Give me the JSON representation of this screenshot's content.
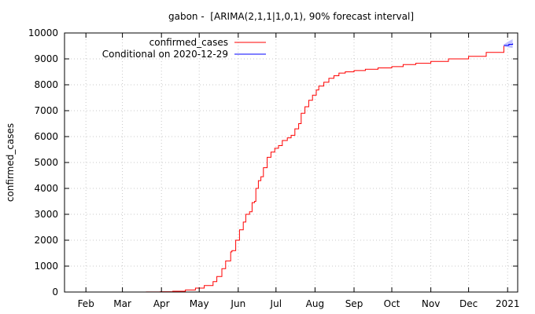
{
  "chart_data": {
    "type": "line",
    "title": "gabon -  [ARIMA(2,1,1|1,0,1), 90% forecast interval]",
    "xlabel": "",
    "ylabel": "confirmed_cases",
    "ylim": [
      0,
      10000
    ],
    "yticks": [
      0,
      1000,
      2000,
      3000,
      4000,
      5000,
      6000,
      7000,
      8000,
      9000,
      10000
    ],
    "x_range": [
      "2020-01-15",
      "2021-01-09"
    ],
    "xticks": [
      {
        "date": "2020-02-01",
        "label": "Feb"
      },
      {
        "date": "2020-03-01",
        "label": "Mar"
      },
      {
        "date": "2020-04-01",
        "label": "Apr"
      },
      {
        "date": "2020-05-01",
        "label": "May"
      },
      {
        "date": "2020-06-01",
        "label": "Jun"
      },
      {
        "date": "2020-07-01",
        "label": "Jul"
      },
      {
        "date": "2020-08-01",
        "label": "Aug"
      },
      {
        "date": "2020-09-01",
        "label": "Sep"
      },
      {
        "date": "2020-10-01",
        "label": "Oct"
      },
      {
        "date": "2020-11-01",
        "label": "Nov"
      },
      {
        "date": "2020-12-01",
        "label": "Dec"
      },
      {
        "date": "2021-01-01",
        "label": "2021"
      }
    ],
    "grid": true,
    "legend_position": "top-right",
    "series": [
      {
        "name": "confirmed_cases",
        "color": "#ff0000",
        "points": [
          [
            "2020-03-12",
            1
          ],
          [
            "2020-03-20",
            5
          ],
          [
            "2020-03-31",
            10
          ],
          [
            "2020-04-10",
            30
          ],
          [
            "2020-04-20",
            80
          ],
          [
            "2020-04-28",
            150
          ],
          [
            "2020-05-05",
            250
          ],
          [
            "2020-05-12",
            400
          ],
          [
            "2020-05-15",
            600
          ],
          [
            "2020-05-19",
            900
          ],
          [
            "2020-05-22",
            1200
          ],
          [
            "2020-05-26",
            1550
          ],
          [
            "2020-05-27",
            1600
          ],
          [
            "2020-05-30",
            2000
          ],
          [
            "2020-06-02",
            2400
          ],
          [
            "2020-06-05",
            2700
          ],
          [
            "2020-06-07",
            3000
          ],
          [
            "2020-06-10",
            3100
          ],
          [
            "2020-06-12",
            3450
          ],
          [
            "2020-06-14",
            3500
          ],
          [
            "2020-06-15",
            4000
          ],
          [
            "2020-06-17",
            4300
          ],
          [
            "2020-06-19",
            4450
          ],
          [
            "2020-06-21",
            4800
          ],
          [
            "2020-06-24",
            5200
          ],
          [
            "2020-06-27",
            5400
          ],
          [
            "2020-06-30",
            5550
          ],
          [
            "2020-07-03",
            5650
          ],
          [
            "2020-07-06",
            5850
          ],
          [
            "2020-07-10",
            5950
          ],
          [
            "2020-07-13",
            6050
          ],
          [
            "2020-07-16",
            6300
          ],
          [
            "2020-07-19",
            6500
          ],
          [
            "2020-07-21",
            6900
          ],
          [
            "2020-07-24",
            7150
          ],
          [
            "2020-07-27",
            7400
          ],
          [
            "2020-07-30",
            7600
          ],
          [
            "2020-08-02",
            7800
          ],
          [
            "2020-08-04",
            7950
          ],
          [
            "2020-08-08",
            8100
          ],
          [
            "2020-08-12",
            8250
          ],
          [
            "2020-08-16",
            8350
          ],
          [
            "2020-08-20",
            8450
          ],
          [
            "2020-08-25",
            8500
          ],
          [
            "2020-09-01",
            8550
          ],
          [
            "2020-09-10",
            8600
          ],
          [
            "2020-09-20",
            8650
          ],
          [
            "2020-10-01",
            8700
          ],
          [
            "2020-10-10",
            8780
          ],
          [
            "2020-10-20",
            8830
          ],
          [
            "2020-11-01",
            8900
          ],
          [
            "2020-11-15",
            9000
          ],
          [
            "2020-12-01",
            9100
          ],
          [
            "2020-12-15",
            9250
          ],
          [
            "2020-12-29",
            9500
          ]
        ]
      },
      {
        "name": "Conditional on 2020-12-29",
        "color": "#0000ff",
        "points": [
          [
            "2020-12-29",
            9520
          ],
          [
            "2021-01-02",
            9560
          ],
          [
            "2021-01-05",
            9590
          ]
        ],
        "interval": {
          "label": "90% forecast interval",
          "color": "#b4b4ff",
          "lower": [
            [
              "2020-12-29",
              9480
            ],
            [
              "2021-01-02",
              9440
            ],
            [
              "2021-01-05",
              9420
            ]
          ],
          "upper": [
            [
              "2020-12-29",
              9560
            ],
            [
              "2021-01-02",
              9680
            ],
            [
              "2021-01-05",
              9760
            ]
          ]
        }
      }
    ]
  }
}
